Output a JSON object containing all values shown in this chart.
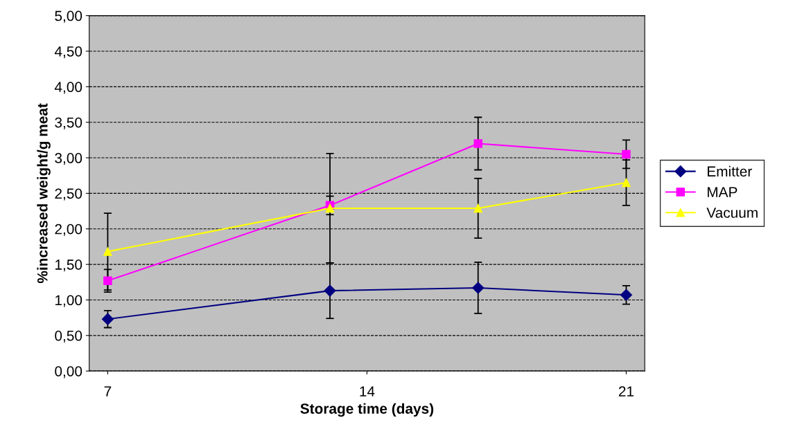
{
  "chart_data": {
    "type": "line",
    "xlabel": "Storage time (days)",
    "ylabel": "%increased weight/g meat",
    "x": [
      7,
      13,
      17,
      21
    ],
    "xlim": [
      6.5,
      21.5
    ],
    "xticks": [
      7,
      14,
      21
    ],
    "ylim": [
      0,
      5
    ],
    "yticks": [
      {
        "value": 0,
        "label": "0,00"
      },
      {
        "value": 0.5,
        "label": "0,50"
      },
      {
        "value": 1,
        "label": "1,00"
      },
      {
        "value": 1.5,
        "label": "1,50"
      },
      {
        "value": 2,
        "label": "2,00"
      },
      {
        "value": 2.5,
        "label": "2,50"
      },
      {
        "value": 3,
        "label": "3,00"
      },
      {
        "value": 3.5,
        "label": "3,50"
      },
      {
        "value": 4,
        "label": "4,00"
      },
      {
        "value": 4.5,
        "label": "4,50"
      },
      {
        "value": 5,
        "label": "5,00"
      }
    ],
    "grid": "y",
    "legend": "right",
    "series": [
      {
        "name": "Emitter",
        "color": "#000080",
        "marker": "diamond",
        "values": [
          0.73,
          1.13,
          1.17,
          1.07
        ],
        "errors": [
          0.12,
          0.39,
          0.36,
          0.13
        ]
      },
      {
        "name": "MAP",
        "color": "#ff00ff",
        "marker": "square",
        "values": [
          1.27,
          2.33,
          3.2,
          3.05
        ],
        "errors": [
          0.16,
          0.13,
          0.37,
          0.2
        ]
      },
      {
        "name": "Vacuum",
        "color": "#ffff00",
        "marker": "triangle",
        "values": [
          1.68,
          2.29,
          2.29,
          2.65
        ],
        "errors": [
          0.54,
          0.77,
          0.42,
          0.32
        ]
      }
    ]
  }
}
